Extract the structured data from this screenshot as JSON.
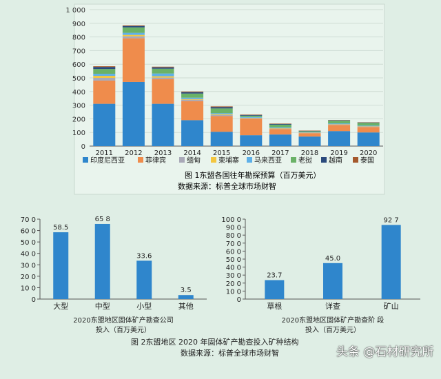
{
  "chart_data": [
    {
      "type": "stacked-bar",
      "title": "图 1东盟各国往年勘探预算（百万美元）",
      "source": "数据来源：标普全球市场财智",
      "categories": [
        "2011",
        "2012",
        "2013",
        "2014",
        "2015",
        "2016",
        "2017",
        "2018",
        "2019",
        "2020"
      ],
      "ylim": [
        0,
        1000
      ],
      "yticks": [
        "0",
        "100",
        "200",
        "300",
        "400",
        "500",
        "600",
        "700",
        "800",
        "900",
        "1 000"
      ],
      "series": [
        {
          "name": "印度尼西亚",
          "color": "#2f86cc",
          "values": [
            310,
            470,
            310,
            190,
            105,
            80,
            85,
            70,
            110,
            100
          ]
        },
        {
          "name": "菲律宾",
          "color": "#ef8c4c",
          "values": [
            170,
            320,
            180,
            140,
            115,
            120,
            40,
            25,
            45,
            40
          ]
        },
        {
          "name": "缅甸",
          "color": "#a9a9b8",
          "values": [
            20,
            15,
            12,
            10,
            8,
            5,
            4,
            3,
            4,
            4
          ]
        },
        {
          "name": "柬埔寨",
          "color": "#f3c640",
          "values": [
            15,
            10,
            10,
            5,
            5,
            3,
            3,
            2,
            2,
            2
          ]
        },
        {
          "name": "马来西亚",
          "color": "#5eb0e8",
          "values": [
            15,
            15,
            20,
            10,
            8,
            5,
            5,
            3,
            5,
            4
          ]
        },
        {
          "name": "老挝",
          "color": "#6ab267",
          "values": [
            35,
            40,
            35,
            30,
            35,
            10,
            20,
            6,
            20,
            20
          ]
        },
        {
          "name": "越南",
          "color": "#2a4a7c",
          "values": [
            15,
            10,
            10,
            10,
            10,
            5,
            5,
            3,
            3,
            3
          ]
        },
        {
          "name": "泰国",
          "color": "#a4582c",
          "values": [
            5,
            5,
            5,
            5,
            5,
            3,
            3,
            2,
            2,
            2
          ]
        }
      ]
    },
    {
      "type": "bar",
      "title": "2020东盟地区固体矿产勘查公司投入（百万美元）",
      "title_lines": [
        "2020东盟地区固体矿产勘查公司",
        "投入（百万美元）"
      ],
      "categories": [
        "大型",
        "中型",
        "小型",
        "其他"
      ],
      "values": [
        58.5,
        65.8,
        33.6,
        3.5
      ],
      "value_labels": [
        "58.5",
        "65 8",
        "33.6",
        "3.5"
      ],
      "ylim": [
        0,
        70
      ],
      "yticks": [
        "0",
        "10 0",
        "20 0",
        "30 0",
        "40 0",
        "50 0",
        "60 0",
        "70 0"
      ],
      "color": "#2f86cc"
    },
    {
      "type": "bar",
      "title": "2020东盟地区固体矿产勘查阶段投入（百万美元）",
      "title_lines": [
        "2020东盟地区固体矿产勘查阶 段",
        "投入（百万美元）"
      ],
      "categories": [
        "草根",
        "详查",
        "矿山"
      ],
      "values": [
        23.7,
        45.0,
        92.7
      ],
      "value_labels": [
        "23.7",
        "45.0",
        "92 7"
      ],
      "ylim": [
        0,
        100
      ],
      "yticks": [
        "0",
        "10 0",
        "20 0",
        "30 0",
        "40 0",
        "50 0",
        "60 0",
        "70 0",
        "80 0",
        "90 0",
        "100 0"
      ],
      "color": "#2f86cc"
    }
  ],
  "figure2_caption": "图 2东盟地区 2020 年固体矿产勘查投入矿种结构",
  "figure2_source": "数据来源：标普全球市场财智",
  "watermark": "头条 @石材研究所"
}
